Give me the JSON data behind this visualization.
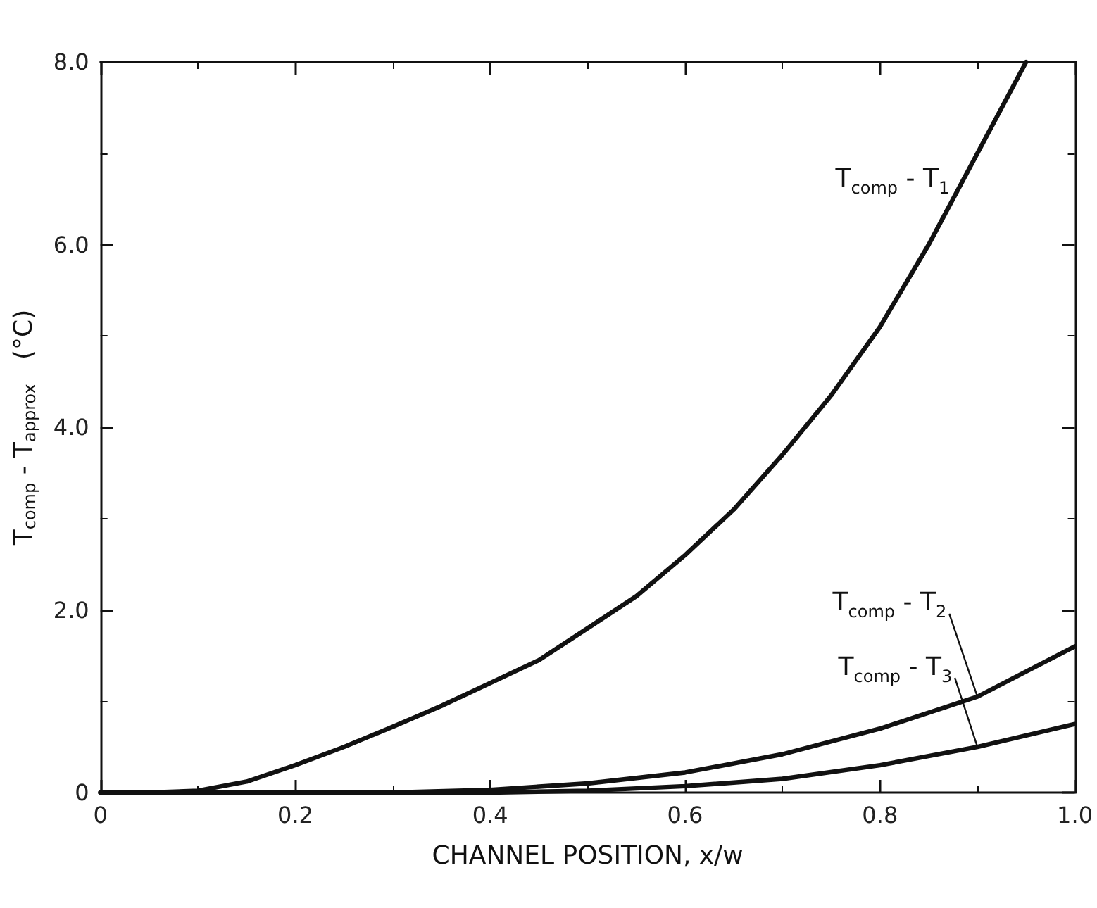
{
  "chart_data": {
    "type": "line",
    "xlabel": "CHANNEL POSITION, x/w",
    "ylabel": "T$_{comp}$ - T$_{approx}$   (°C)",
    "xlim": [
      0,
      1.0
    ],
    "xticks": [
      0,
      0.2,
      0.4,
      0.6,
      0.8,
      {
        "value": 1.0,
        "label": "1.0"
      }
    ],
    "ylim": [
      0,
      8.0
    ],
    "yticks": [
      0,
      {
        "value": 2,
        "label": "2.0"
      },
      {
        "value": 4,
        "label": "4.0"
      },
      {
        "value": 6,
        "label": "6.0"
      },
      {
        "value": 8,
        "label": "8.0"
      }
    ],
    "grid": false,
    "legend": false,
    "marker": "none",
    "line_style": "solid",
    "series": [
      {
        "name": "T$_{comp}$ - T$_{1}$",
        "color": "#111111",
        "x": [
          0,
          0.05,
          0.1,
          0.15,
          0.2,
          0.25,
          0.3,
          0.35,
          0.4,
          0.45,
          0.5,
          0.55,
          0.6,
          0.65,
          0.7,
          0.75,
          0.8,
          0.85,
          0.9,
          0.95
        ],
        "values": [
          0,
          0,
          0.02,
          0.12,
          0.3,
          0.5,
          0.72,
          0.95,
          1.2,
          1.45,
          1.8,
          2.15,
          2.6,
          3.1,
          3.7,
          4.35,
          5.1,
          6.0,
          7.0,
          8.0
        ]
      },
      {
        "name": "T$_{comp}$ - T$_{2}$",
        "color": "#111111",
        "x": [
          0,
          0.1,
          0.2,
          0.3,
          0.4,
          0.5,
          0.6,
          0.7,
          0.8,
          0.9,
          1.0
        ],
        "values": [
          0,
          0,
          0,
          0,
          0.03,
          0.1,
          0.22,
          0.42,
          0.7,
          1.05,
          1.6
        ]
      },
      {
        "name": "T$_{comp}$ - T$_{3}$",
        "color": "#111111",
        "x": [
          0,
          0.1,
          0.2,
          0.3,
          0.4,
          0.5,
          0.6,
          0.7,
          0.8,
          0.9,
          1.0
        ],
        "values": [
          0,
          0,
          0,
          0,
          0,
          0.02,
          0.07,
          0.15,
          0.3,
          0.5,
          0.75
        ]
      }
    ]
  }
}
